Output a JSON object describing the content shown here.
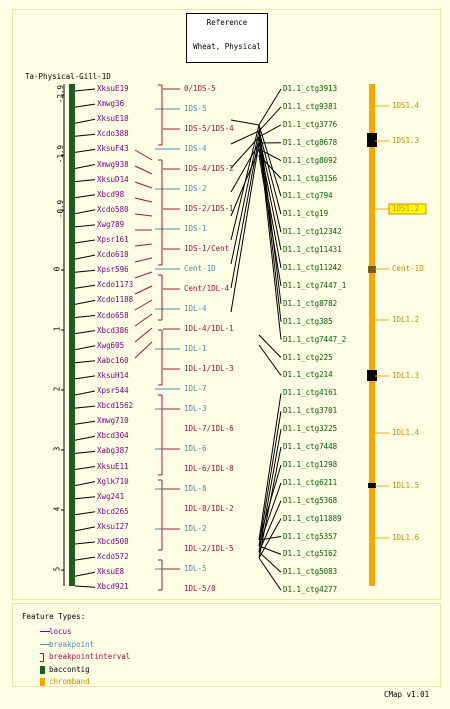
{
  "reference": {
    "title": "Reference",
    "subtitle": "Wheat, Physical"
  },
  "map_title": "Ta-Physical-Gill-1D",
  "scale_ticks": [
    "-2.9",
    "-1.9",
    "-0.9",
    "0",
    "1",
    "2",
    "3",
    "4",
    "5"
  ],
  "loci": [
    "XksuE19",
    "Xmwg36",
    "XksuE18",
    "Xcdo388",
    "XksuF43",
    "Xmwg938",
    "XksuD14",
    "Xbcd98",
    "Xcdo580",
    "Xwg789",
    "Xpsr161",
    "Xcdo618",
    "Xpsr596",
    "Xcdo1173",
    "Xcdo1188",
    "Xcdo658",
    "Xbcd386",
    "Xwg605",
    "Xabc160",
    "XksuH14",
    "Xpsr544",
    "Xbcd1562",
    "Xmwg710",
    "Xbcd304",
    "Xabg387",
    "XksuE11",
    "Xglk710",
    "Xwg241",
    "Xbcd265",
    "XksuI27",
    "Xbcd508",
    "Xcdo572",
    "XksuE8",
    "Xbcd921"
  ],
  "breakpoints": [
    {
      "label": "0/1DS-5",
      "kind": "bpi"
    },
    {
      "label": "1DS-5",
      "kind": "bp"
    },
    {
      "label": "1DS-5/1DS-4",
      "kind": "bpi"
    },
    {
      "label": "1DS-4",
      "kind": "bp"
    },
    {
      "label": "1DS-4/1DS-2",
      "kind": "bpi"
    },
    {
      "label": "1DS-2",
      "kind": "bp"
    },
    {
      "label": "1DS-2/1DS-1",
      "kind": "bpi"
    },
    {
      "label": "1DS-1",
      "kind": "bp"
    },
    {
      "label": "1DS-1/Cent",
      "kind": "bpi"
    },
    {
      "label": "Cent-1D",
      "kind": "bp"
    },
    {
      "label": "Cent/1DL-4",
      "kind": "bpi"
    },
    {
      "label": "1DL-4",
      "kind": "bp"
    },
    {
      "label": "1DL-4/1DL-1",
      "kind": "bpi"
    },
    {
      "label": "1DL-1",
      "kind": "bp"
    },
    {
      "label": "1DL-1/1DL-3",
      "kind": "bpi"
    },
    {
      "label": "1DL-7",
      "kind": "bp"
    },
    {
      "label": "1DL-3",
      "kind": "bp"
    },
    {
      "label": "1DL-7/1DL-6",
      "kind": "bpi"
    },
    {
      "label": "1DL-6",
      "kind": "bp"
    },
    {
      "label": "1DL-6/1DL-8",
      "kind": "bpi"
    },
    {
      "label": "1DL-8",
      "kind": "bp"
    },
    {
      "label": "1DL-8/1DL-2",
      "kind": "bpi"
    },
    {
      "label": "1DL-2",
      "kind": "bp"
    },
    {
      "label": "1DL-2/1DL-5",
      "kind": "bpi"
    },
    {
      "label": "1DL-5",
      "kind": "bp"
    },
    {
      "label": "1DL-5/0",
      "kind": "bpi"
    }
  ],
  "contigs": [
    "D1.1_ctg3913",
    "D1.1_ctg9381",
    "D1.1_ctg3776",
    "D1.1_ctg8678",
    "D1.1_ctg8092",
    "D1.1_ctg3156",
    "D1.1_ctg794",
    "D1.1_ctg19",
    "D1.1_ctg12342",
    "D1.1_ctg11431",
    "D1.1_ctg11242",
    "D1.1_ctg7447_1",
    "D1.1_ctg8782",
    "D1.1_ctg385",
    "D1.1_ctg7447_2",
    "D1.1_ctg225",
    "D1.1_ctg214",
    "D1.1_ctg4161",
    "D1.1_ctg3701",
    "D1.1_ctg3225",
    "D1.1_ctg7448",
    "D1.1_ctg1298",
    "D1.1_ctg6211",
    "D1.1_ctg5368",
    "D1.1_ctg11889",
    "D1.1_ctg5357",
    "D1.1_ctg5162",
    "D1.1_ctg5083",
    "D1.1_ctg4277"
  ],
  "bands": [
    "1DS1.4",
    "1DS1.3",
    "1DS1.2",
    "Cent-1D",
    "1DL1.2",
    "1DL1.3",
    "1DL1.4",
    "1DL1.5",
    "1DL1.6"
  ],
  "legend": {
    "title": "Feature Types:",
    "items": [
      "locus",
      "breakpoint",
      "breakpointinterval",
      "baccontig",
      "chromband"
    ]
  },
  "version": "CMap v1.01",
  "colors": {
    "background": "#ffffe6",
    "contig": "#1f5c1f",
    "chromband": "#ffa500",
    "breakpointinterval": "#b0103a",
    "locus": "#800080",
    "breakpoint": "#4a8fa5",
    "highlight": "#ffff00"
  }
}
